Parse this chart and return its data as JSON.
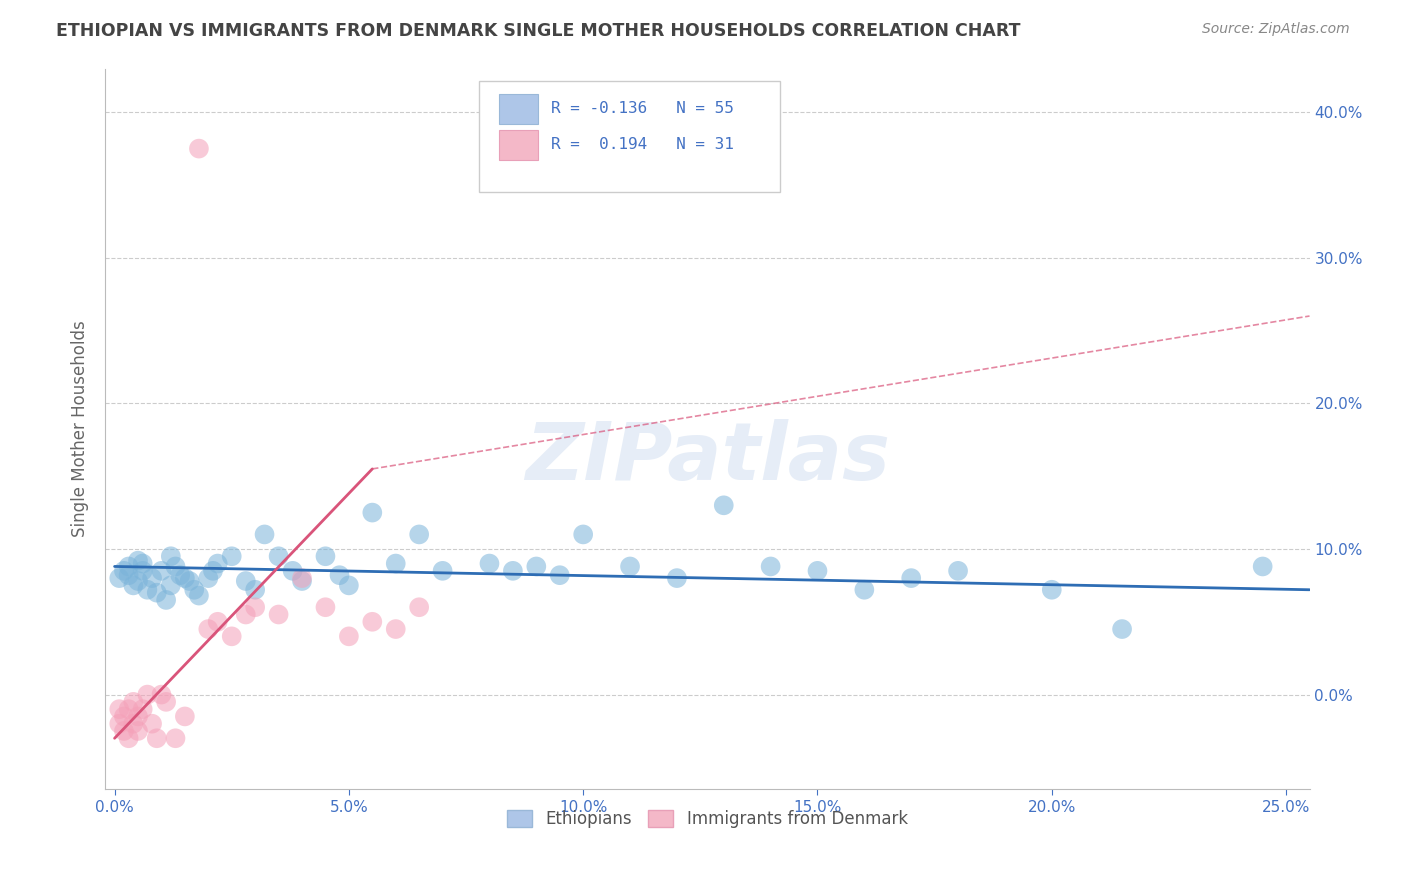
{
  "title": "ETHIOPIAN VS IMMIGRANTS FROM DENMARK SINGLE MOTHER HOUSEHOLDS CORRELATION CHART",
  "source": "Source: ZipAtlas.com",
  "ylabel": "Single Mother Households",
  "watermark": "ZIPatlas",
  "xlim": [
    -0.002,
    0.255
  ],
  "ylim": [
    -0.065,
    0.43
  ],
  "xticks": [
    0.0,
    0.05,
    0.1,
    0.15,
    0.2,
    0.25
  ],
  "xticklabels": [
    "0.0%",
    "5.0%",
    "10.0%",
    "15.0%",
    "20.0%",
    "25.0%"
  ],
  "yticks_right": [
    0.0,
    0.1,
    0.2,
    0.3,
    0.4
  ],
  "yticklabels_right": [
    "0.0%",
    "10.0%",
    "20.0%",
    "30.0%",
    "40.0%"
  ],
  "ethiopians_x": [
    0.001,
    0.002,
    0.003,
    0.003,
    0.004,
    0.005,
    0.005,
    0.006,
    0.006,
    0.007,
    0.008,
    0.009,
    0.01,
    0.011,
    0.012,
    0.012,
    0.013,
    0.014,
    0.015,
    0.016,
    0.017,
    0.018,
    0.02,
    0.021,
    0.022,
    0.025,
    0.028,
    0.03,
    0.032,
    0.035,
    0.038,
    0.04,
    0.045,
    0.048,
    0.05,
    0.055,
    0.06,
    0.065,
    0.07,
    0.08,
    0.085,
    0.09,
    0.095,
    0.1,
    0.11,
    0.12,
    0.13,
    0.14,
    0.15,
    0.16,
    0.17,
    0.18,
    0.2,
    0.215,
    0.245
  ],
  "ethiopians_y": [
    0.08,
    0.085,
    0.082,
    0.088,
    0.075,
    0.092,
    0.078,
    0.085,
    0.09,
    0.072,
    0.08,
    0.07,
    0.085,
    0.065,
    0.095,
    0.075,
    0.088,
    0.082,
    0.08,
    0.078,
    0.072,
    0.068,
    0.08,
    0.085,
    0.09,
    0.095,
    0.078,
    0.072,
    0.11,
    0.095,
    0.085,
    0.078,
    0.095,
    0.082,
    0.075,
    0.125,
    0.09,
    0.11,
    0.085,
    0.09,
    0.085,
    0.088,
    0.082,
    0.11,
    0.088,
    0.08,
    0.13,
    0.088,
    0.085,
    0.072,
    0.08,
    0.085,
    0.072,
    0.045,
    0.088
  ],
  "denmark_x": [
    0.001,
    0.001,
    0.002,
    0.002,
    0.003,
    0.003,
    0.004,
    0.004,
    0.005,
    0.005,
    0.006,
    0.007,
    0.008,
    0.009,
    0.01,
    0.011,
    0.013,
    0.015,
    0.018,
    0.02,
    0.022,
    0.025,
    0.028,
    0.03,
    0.035,
    0.04,
    0.045,
    0.05,
    0.055,
    0.06,
    0.065
  ],
  "denmark_y": [
    -0.01,
    -0.02,
    -0.015,
    -0.025,
    -0.01,
    -0.03,
    -0.02,
    -0.005,
    -0.015,
    -0.025,
    -0.01,
    0.0,
    -0.02,
    -0.03,
    0.0,
    -0.005,
    -0.03,
    -0.015,
    0.375,
    0.045,
    0.05,
    0.04,
    0.055,
    0.06,
    0.055,
    0.08,
    0.06,
    0.04,
    0.05,
    0.045,
    0.06
  ],
  "trend_eth_x0": 0.0,
  "trend_eth_x1": 0.255,
  "trend_eth_y0": 0.088,
  "trend_eth_y1": 0.072,
  "trend_dk_solid_x0": 0.0,
  "trend_dk_solid_x1": 0.055,
  "trend_dk_solid_y0": -0.03,
  "trend_dk_solid_y1": 0.155,
  "trend_dk_dash_x0": 0.055,
  "trend_dk_dash_x1": 0.255,
  "trend_dk_dash_y0": 0.155,
  "trend_dk_dash_y1": 0.26,
  "background_color": "#ffffff",
  "grid_color": "#cccccc",
  "title_color": "#444444",
  "tick_color": "#4472c4",
  "eth_color": "#7ab3d9",
  "dk_color": "#f4a0b8",
  "eth_trend_color": "#2e6db4",
  "dk_trend_color": "#d9547a",
  "legend_box1": "#aec6e8",
  "legend_box2": "#f4b8c8",
  "legend_text_color": "#4472c4"
}
